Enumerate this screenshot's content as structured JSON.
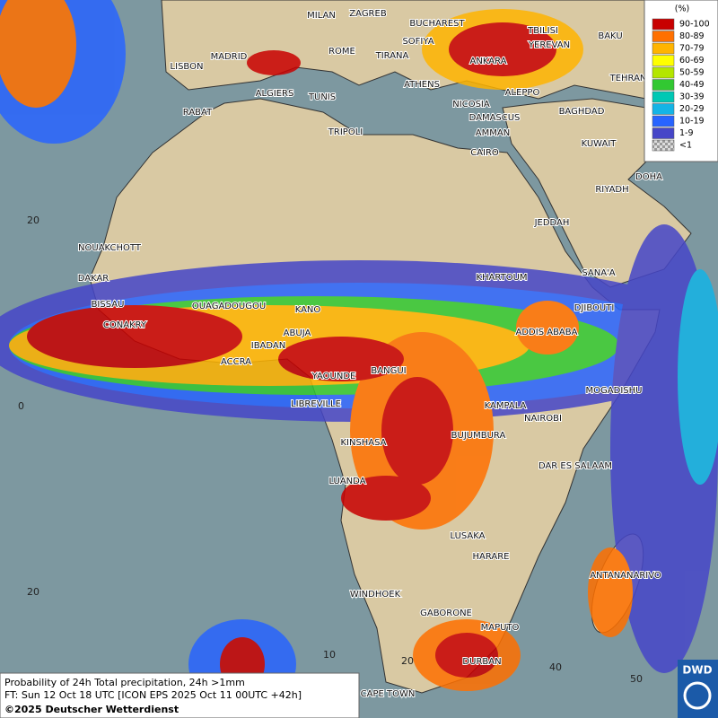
{
  "legend": {
    "title": "(%)",
    "items": [
      {
        "label": "90-100",
        "color": "#c80000"
      },
      {
        "label": "80-89",
        "color": "#ff7000"
      },
      {
        "label": "70-79",
        "color": "#ffb400"
      },
      {
        "label": "60-69",
        "color": "#ffff00"
      },
      {
        "label": "50-59",
        "color": "#b4e600"
      },
      {
        "label": "40-49",
        "color": "#32c832"
      },
      {
        "label": "30-39",
        "color": "#00c8b4"
      },
      {
        "label": "20-29",
        "color": "#14b4e6"
      },
      {
        "label": "10-19",
        "color": "#2864ff"
      },
      {
        "label": "1-9",
        "color": "#4646c8"
      },
      {
        "label": "<1",
        "color": "#b4b4b4"
      }
    ]
  },
  "cities": [
    "MILAN",
    "ZAGREB",
    "BUCHAREST",
    "SOFIYA",
    "TBILISI",
    "BAKU",
    "MADRID",
    "ROME",
    "TIRANA",
    "ANKARA",
    "YEREVAN",
    "LISBON",
    "TEHRAN",
    "ATHENS",
    "ALGIERS",
    "TUNIS",
    "ALEPPO",
    "NICOSIA",
    "BAGHDAD",
    "RABAT",
    "DAMASCUS",
    "AMMAN",
    "TRIPOLI",
    "KUWAIT",
    "CAIRO",
    "DOHA",
    "RIYADH",
    "JEDDAH",
    "NOUAKCHOTT",
    "SANA'A",
    "KHARTOUM",
    "DAKAR",
    "DJIBOUTI",
    "BISSAU",
    "OUAGADOUGOU",
    "KANO",
    "CONAKRY",
    "ABUJA",
    "ADDIS ABABA",
    "IBADAN",
    "ACCRA",
    "BANGUI",
    "YAOUNDE",
    "MOGADISHU",
    "LIBREVILLE",
    "KAMPALA",
    "NAIROBI",
    "BUJUMBURA",
    "KINSHASA",
    "DAR ES SALAAM",
    "LUANDA",
    "LUSAKA",
    "HARARE",
    "ANTANANARIVO",
    "WINDHOEK",
    "GABORONE",
    "MAPUTO",
    "DURBAN",
    "CAPE TOWN"
  ],
  "grid_labels": [
    "20",
    "0",
    "20",
    "10",
    "20",
    "40",
    "50"
  ],
  "caption": {
    "line1": "Probability of 24h Total precipitation, 24h >1mm",
    "line2": "FT: Sun 12 Oct 18 UTC [ICON EPS 2025 Oct 11 00UTC +42h]",
    "copyright": "©2025 Deutscher Wetterdienst"
  },
  "logo": "DWD"
}
